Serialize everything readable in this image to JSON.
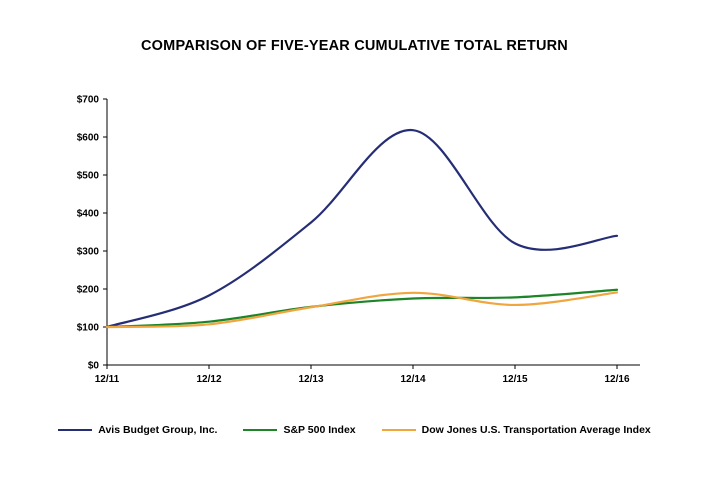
{
  "chart_data": {
    "type": "line",
    "title": "COMPARISON OF FIVE-YEAR CUMULATIVE TOTAL RETURN",
    "xlabel": "",
    "ylabel": "",
    "x_categories": [
      "12/11",
      "12/12",
      "12/13",
      "12/14",
      "12/15",
      "12/16"
    ],
    "y_ticks": [
      "$0",
      "$100",
      "$200",
      "$300",
      "$400",
      "$500",
      "$600",
      "$700"
    ],
    "ylim": [
      0,
      700
    ],
    "y_tick_step": 100,
    "grid": false,
    "legend_position": "bottom",
    "series": [
      {
        "name": "Avis Budget Group, Inc.",
        "color": "#252d75",
        "values": [
          100,
          183,
          375,
          618,
          320,
          340
        ]
      },
      {
        "name": "S&P 500 Index",
        "color": "#1e8428",
        "values": [
          100,
          114,
          153,
          175,
          178,
          198
        ]
      },
      {
        "name": "Dow Jones U.S. Transportation Average Index",
        "color": "#f0a53e",
        "values": [
          100,
          107,
          152,
          190,
          158,
          191
        ]
      }
    ]
  }
}
